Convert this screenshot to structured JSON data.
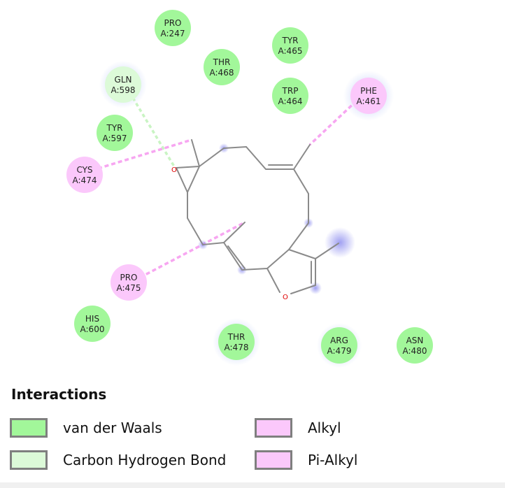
{
  "colors": {
    "van_der_waals": "#a2f79a",
    "carbon_hydrogen_bond": "#dcfad8",
    "alkyl": "#fbc8fb",
    "pi_alkyl": "#fbc8fb",
    "bond_line": "#8a8a8a",
    "oxygen": "#e00000",
    "alkyl_interaction_line": "#f7a6f1",
    "ch_bond_interaction_line": "#c9f4c3",
    "solvent_glow": "#9f9ff0"
  },
  "residues": [
    {
      "id": "pro247",
      "name": "PRO",
      "chain_res": "A:247",
      "type": "van_der_waals"
    },
    {
      "id": "tyr465",
      "name": "TYR",
      "chain_res": "A:465",
      "type": "van_der_waals"
    },
    {
      "id": "thr468",
      "name": "THR",
      "chain_res": "A:468",
      "type": "van_der_waals"
    },
    {
      "id": "gln598",
      "name": "GLN",
      "chain_res": "A:598",
      "type": "carbon_hydrogen_bond"
    },
    {
      "id": "trp464",
      "name": "TRP",
      "chain_res": "A:464",
      "type": "van_der_waals"
    },
    {
      "id": "phe461",
      "name": "PHE",
      "chain_res": "A:461",
      "type": "pi_alkyl"
    },
    {
      "id": "tyr597",
      "name": "TYR",
      "chain_res": "A:597",
      "type": "van_der_waals"
    },
    {
      "id": "cys474",
      "name": "CYS",
      "chain_res": "A:474",
      "type": "alkyl"
    },
    {
      "id": "pro475",
      "name": "PRO",
      "chain_res": "A:475",
      "type": "alkyl"
    },
    {
      "id": "his600",
      "name": "HIS",
      "chain_res": "A:600",
      "type": "van_der_waals"
    },
    {
      "id": "thr478",
      "name": "THR",
      "chain_res": "A:478",
      "type": "van_der_waals"
    },
    {
      "id": "arg479",
      "name": "ARG",
      "chain_res": "A:479",
      "type": "van_der_waals"
    },
    {
      "id": "asn480",
      "name": "ASN",
      "chain_res": "A:480",
      "type": "van_der_waals"
    }
  ],
  "ligand": {
    "oxygen_label": "O"
  },
  "legend": {
    "title": "Interactions",
    "items": [
      {
        "label": "van der Waals",
        "color_key": "van_der_waals"
      },
      {
        "label": "Carbon Hydrogen Bond",
        "color_key": "carbon_hydrogen_bond"
      },
      {
        "label": "Alkyl",
        "color_key": "alkyl"
      },
      {
        "label": "Pi-Alkyl",
        "color_key": "pi_alkyl"
      }
    ]
  }
}
